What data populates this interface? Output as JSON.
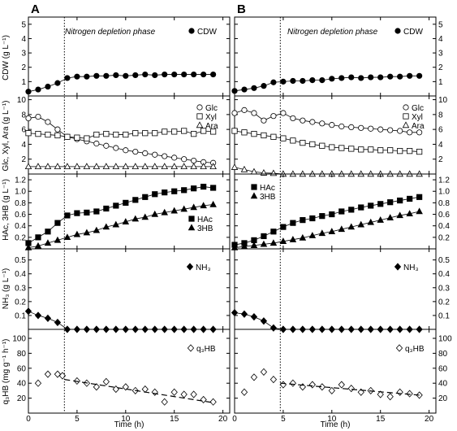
{
  "panel_letters": [
    "A",
    "B"
  ],
  "phase_label": "Nitrogen depletion phase",
  "x_axis": {
    "label": "Time (h)",
    "ticks": [
      0,
      5,
      10,
      15,
      20
    ],
    "lim": [
      0,
      20.7
    ]
  },
  "row_labels": [
    "CDW (g L⁻¹)",
    "Glc, Xyl, Ara (g L⁻¹)",
    "HAc, 3HB (g L⁻¹)",
    "NH₃ (g L⁻¹)",
    "q₃HB (mg g⁻¹ h⁻¹)"
  ],
  "legend_labels": {
    "cdw": [
      "CDW"
    ],
    "sugars": [
      "Glc",
      "Xyl",
      "Ara"
    ],
    "acids": [
      "HAc",
      "3HB"
    ],
    "nh3": [
      "NH₃"
    ],
    "q": [
      "q₃HB"
    ]
  },
  "chart_data": [
    {
      "type": "line",
      "panel": "A",
      "depletion_time": 3.7,
      "rows": [
        {
          "ylabel": "CDW (g L⁻¹)",
          "ylim": [
            0,
            5.5
          ],
          "ticks": [
            1,
            2,
            3,
            4,
            5
          ],
          "series": [
            {
              "name": "CDW",
              "x": [
                0,
                1,
                2,
                3,
                4,
                5,
                6,
                7,
                8,
                9,
                10,
                11,
                12,
                13,
                14,
                15,
                16,
                17,
                18,
                19
              ],
              "y": [
                0.3,
                0.45,
                0.65,
                0.9,
                1.25,
                1.35,
                1.35,
                1.4,
                1.4,
                1.45,
                1.4,
                1.45,
                1.5,
                1.45,
                1.5,
                1.5,
                1.5,
                1.5,
                1.5,
                1.5
              ]
            }
          ]
        },
        {
          "ylabel": "Glc, Xyl, Ara (g L⁻¹)",
          "ylim": [
            0,
            10.5
          ],
          "ticks": [
            2,
            4,
            6,
            8,
            10
          ],
          "series": [
            {
              "name": "Glc",
              "x": [
                0,
                1,
                2,
                3,
                4,
                5,
                6,
                7,
                8,
                9,
                10,
                11,
                12,
                13,
                14,
                15,
                16,
                17,
                18,
                19
              ],
              "y": [
                7.5,
                7.7,
                7.0,
                6.0,
                5.0,
                4.7,
                4.4,
                4.1,
                3.8,
                3.5,
                3.2,
                3.0,
                2.8,
                2.6,
                2.4,
                2.2,
                2.0,
                1.8,
                1.6,
                1.5
              ]
            },
            {
              "name": "Xyl",
              "x": [
                0,
                1,
                2,
                3,
                4,
                5,
                6,
                7,
                8,
                9,
                10,
                11,
                12,
                13,
                14,
                15,
                16,
                17,
                18,
                19
              ],
              "y": [
                5.5,
                5.4,
                5.3,
                5.2,
                5.0,
                4.9,
                4.8,
                5.3,
                5.4,
                5.3,
                5.3,
                5.5,
                5.5,
                5.5,
                5.7,
                5.7,
                5.8,
                5.4,
                5.8,
                5.7
              ]
            },
            {
              "name": "Ara",
              "x": [
                0,
                1,
                2,
                3,
                4,
                5,
                6,
                7,
                8,
                9,
                10,
                11,
                12,
                13,
                14,
                15,
                16,
                17,
                18,
                19
              ],
              "y": [
                1.0,
                1.0,
                1.0,
                1.0,
                1.0,
                1.0,
                1.0,
                1.0,
                1.0,
                1.0,
                1.0,
                1.0,
                1.0,
                1.0,
                1.0,
                1.0,
                1.0,
                1.0,
                1.0,
                1.0
              ]
            }
          ]
        },
        {
          "ylabel": "HAc, 3HB (g L⁻¹)",
          "ylim": [
            0,
            1.3
          ],
          "ticks": [
            0.2,
            0.4,
            0.6,
            0.8,
            1.0,
            1.2
          ],
          "series": [
            {
              "name": "HAc",
              "x": [
                0,
                1,
                2,
                3,
                4,
                5,
                6,
                7,
                8,
                9,
                10,
                11,
                12,
                13,
                14,
                15,
                16,
                17,
                18,
                19
              ],
              "y": [
                0.1,
                0.2,
                0.3,
                0.45,
                0.58,
                0.62,
                0.63,
                0.65,
                0.7,
                0.75,
                0.8,
                0.85,
                0.9,
                0.95,
                0.98,
                1.0,
                1.02,
                1.05,
                1.08,
                1.06
              ]
            },
            {
              "name": "3HB",
              "x": [
                0,
                1,
                2,
                3,
                4,
                5,
                6,
                7,
                8,
                9,
                10,
                11,
                12,
                13,
                14,
                15,
                16,
                17,
                18,
                19
              ],
              "y": [
                0.02,
                0.05,
                0.1,
                0.15,
                0.2,
                0.25,
                0.28,
                0.32,
                0.38,
                0.42,
                0.47,
                0.52,
                0.55,
                0.6,
                0.63,
                0.66,
                0.69,
                0.72,
                0.75,
                0.77
              ]
            }
          ]
        },
        {
          "ylabel": "NH₃ (g L⁻¹)",
          "ylim": [
            0,
            0.58
          ],
          "ticks": [
            0.1,
            0.2,
            0.3,
            0.4,
            0.5
          ],
          "series": [
            {
              "name": "NH₃",
              "x": [
                0,
                1,
                2,
                3,
                4,
                5,
                6,
                7,
                8,
                9,
                10,
                11,
                12,
                13,
                14,
                15,
                16,
                17,
                18,
                19
              ],
              "y": [
                0.13,
                0.1,
                0.08,
                0.05,
                0,
                0,
                0,
                0,
                0,
                0,
                0,
                0,
                0,
                0,
                0,
                0,
                0,
                0,
                0,
                0
              ]
            }
          ]
        },
        {
          "ylabel": "q₃HB (mg g⁻¹ h⁻¹)",
          "ylim": [
            0,
            112
          ],
          "ticks": [
            20,
            40,
            60,
            80,
            100
          ],
          "series": [
            {
              "name": "q₃HB",
              "x": [
                1,
                2,
                3,
                3.5,
                5,
                6,
                7,
                8,
                9,
                10,
                11,
                12,
                13,
                14,
                15,
                16,
                17,
                18,
                19
              ],
              "y": [
                40,
                52,
                52,
                50,
                43,
                40,
                35,
                42,
                32,
                35,
                30,
                32,
                28,
                15,
                28,
                25,
                25,
                18,
                15
              ]
            },
            {
              "name": "q₃HB fit",
              "x": [
                3.7,
                19
              ],
              "y": [
                45,
                14
              ]
            }
          ]
        }
      ]
    },
    {
      "type": "line",
      "panel": "B",
      "depletion_time": 4.7,
      "rows": [
        {
          "ylabel": "CDW (g L⁻¹)",
          "ylim": [
            0,
            5.5
          ],
          "ticks": [
            1,
            2,
            3,
            4,
            5
          ],
          "series": [
            {
              "name": "CDW",
              "x": [
                0,
                1,
                2,
                3,
                4,
                5,
                6,
                7,
                8,
                9,
                10,
                11,
                12,
                13,
                14,
                15,
                16,
                17,
                18,
                19
              ],
              "y": [
                0.35,
                0.45,
                0.55,
                0.7,
                0.95,
                1.0,
                1.05,
                1.05,
                1.1,
                1.1,
                1.2,
                1.25,
                1.3,
                1.25,
                1.3,
                1.3,
                1.35,
                1.35,
                1.4,
                1.4
              ]
            }
          ]
        },
        {
          "ylabel": "Glc, Xyl, Ara (g L⁻¹)",
          "ylim": [
            0,
            10.5
          ],
          "ticks": [
            2,
            4,
            6,
            8,
            10
          ],
          "series": [
            {
              "name": "Glc",
              "x": [
                0,
                1,
                2,
                3,
                4,
                5,
                6,
                7,
                8,
                9,
                10,
                11,
                12,
                13,
                14,
                15,
                16,
                17,
                18,
                19
              ],
              "y": [
                8.2,
                8.6,
                8.2,
                7.2,
                7.8,
                8.2,
                7.5,
                7.2,
                7.0,
                6.8,
                6.6,
                6.4,
                6.3,
                6.2,
                6.1,
                6.0,
                5.9,
                5.8,
                5.6,
                5.6
              ]
            },
            {
              "name": "Xyl",
              "x": [
                0,
                1,
                2,
                3,
                4,
                5,
                6,
                7,
                8,
                9,
                10,
                11,
                12,
                13,
                14,
                15,
                16,
                17,
                18,
                19
              ],
              "y": [
                5.8,
                5.6,
                5.4,
                5.2,
                5.0,
                4.8,
                4.5,
                4.2,
                4.0,
                3.8,
                3.6,
                3.5,
                3.4,
                3.3,
                3.3,
                3.2,
                3.2,
                3.1,
                3.1,
                3.0
              ]
            },
            {
              "name": "Ara",
              "x": [
                0,
                1,
                2,
                3,
                4,
                5,
                6,
                7,
                8,
                9,
                10,
                11,
                12,
                13,
                14,
                15,
                16,
                17,
                18,
                19
              ],
              "y": [
                0.9,
                0.6,
                0.3,
                0.15,
                0.1,
                0,
                0,
                0,
                0,
                0,
                0,
                0,
                0,
                0,
                0,
                0,
                0,
                0,
                0,
                0
              ]
            }
          ]
        },
        {
          "ylabel": "HAc, 3HB (g L⁻¹)",
          "ylim": [
            0,
            1.3
          ],
          "ticks": [
            0.2,
            0.4,
            0.6,
            0.8,
            1.0,
            1.2
          ],
          "series": [
            {
              "name": "HAc",
              "x": [
                0,
                1,
                2,
                3,
                4,
                5,
                6,
                7,
                8,
                9,
                10,
                11,
                12,
                13,
                14,
                15,
                16,
                17,
                18,
                19
              ],
              "y": [
                0.07,
                0.1,
                0.15,
                0.22,
                0.3,
                0.38,
                0.45,
                0.5,
                0.53,
                0.57,
                0.6,
                0.65,
                0.68,
                0.72,
                0.75,
                0.78,
                0.81,
                0.84,
                0.87,
                0.9
              ]
            },
            {
              "name": "3HB",
              "x": [
                0,
                1,
                2,
                3,
                4,
                5,
                6,
                7,
                8,
                9,
                10,
                11,
                12,
                13,
                14,
                15,
                16,
                17,
                18,
                19
              ],
              "y": [
                0.02,
                0.04,
                0.06,
                0.08,
                0.1,
                0.13,
                0.16,
                0.19,
                0.23,
                0.27,
                0.3,
                0.34,
                0.38,
                0.42,
                0.46,
                0.5,
                0.54,
                0.58,
                0.61,
                0.65
              ]
            }
          ]
        },
        {
          "ylabel": "NH₃ (g L⁻¹)",
          "ylim": [
            0,
            0.58
          ],
          "ticks": [
            0.1,
            0.2,
            0.3,
            0.4,
            0.5
          ],
          "series": [
            {
              "name": "NH₃",
              "x": [
                0,
                1,
                2,
                3,
                4,
                5,
                6,
                7,
                8,
                9,
                10,
                11,
                12,
                13,
                14,
                15,
                16,
                17,
                18,
                19
              ],
              "y": [
                0.12,
                0.11,
                0.09,
                0.06,
                0.01,
                0,
                0,
                0,
                0,
                0,
                0,
                0,
                0,
                0,
                0,
                0,
                0,
                0,
                0,
                0
              ]
            }
          ]
        },
        {
          "ylabel": "q₃HB (mg g⁻¹ h⁻¹)",
          "ylim": [
            0,
            112
          ],
          "ticks": [
            20,
            40,
            60,
            80,
            100
          ],
          "series": [
            {
              "name": "q₃HB",
              "x": [
                1,
                2,
                3,
                4,
                5,
                6,
                7,
                8,
                9,
                10,
                11,
                12,
                13,
                14,
                15,
                16,
                17,
                18,
                19
              ],
              "y": [
                28,
                48,
                55,
                45,
                38,
                40,
                35,
                38,
                35,
                30,
                38,
                33,
                28,
                30,
                25,
                22,
                28,
                26,
                24
              ]
            },
            {
              "name": "q₃HB fit",
              "x": [
                4.7,
                19
              ],
              "y": [
                40,
                24
              ]
            }
          ]
        }
      ]
    }
  ]
}
